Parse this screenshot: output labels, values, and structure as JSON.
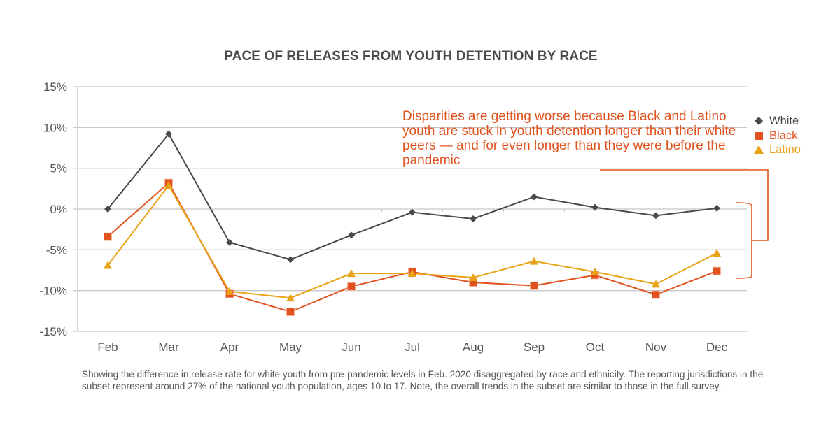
{
  "chart_data": {
    "type": "line",
    "title": "PACE OF RELEASES FROM YOUTH DETENTION BY RACE",
    "xlabel": "",
    "ylabel": "",
    "categories": [
      "Feb",
      "Mar",
      "Apr",
      "May",
      "Jun",
      "Jul",
      "Aug",
      "Sep",
      "Oct",
      "Nov",
      "Dec"
    ],
    "ylim": [
      -15,
      15
    ],
    "yticks": [
      15,
      10,
      5,
      0,
      -5,
      -10,
      -15
    ],
    "ytick_labels": [
      "15%",
      "10%",
      "5%",
      "0%",
      "-5%",
      "-10%",
      "-15%"
    ],
    "grid": true,
    "legend_position": "top-right",
    "series": [
      {
        "name": "White",
        "color": "#4a4a4a",
        "marker": "diamond",
        "values": [
          0.0,
          9.2,
          -4.1,
          -6.2,
          -3.2,
          -0.4,
          -1.2,
          1.5,
          0.2,
          -0.8,
          0.1
        ]
      },
      {
        "name": "Black",
        "color": "#e0531f",
        "marker": "square",
        "values": [
          -3.4,
          3.2,
          -10.4,
          -12.6,
          -9.5,
          -7.7,
          -9.0,
          -9.4,
          -8.1,
          -10.5,
          -7.6
        ]
      },
      {
        "name": "Latino",
        "color": "#e8a317",
        "marker": "triangle",
        "values": [
          -6.9,
          2.9,
          -10.1,
          -10.9,
          -7.9,
          -7.9,
          -8.4,
          -6.4,
          -7.7,
          -9.2,
          -5.4
        ]
      }
    ],
    "annotation": "Disparities are getting worse because Black and Latino youth are stuck in youth detention longer than their white peers — and for even longer than they were before the pandemic",
    "caption": "Showing the difference in release rate for white youth from pre-pandemic levels in Feb. 2020 disaggregated by race and ethnicity. The reporting jurisdictions in the subset represent around 27% of the national youth population, ages 10 to 17. Note, the overall trends in the subset are similar to those in the full survey."
  },
  "colors": {
    "annotation": "#e0531f",
    "grid": "#c8c8c8",
    "title": "#4a4a4a",
    "text": "#555555"
  }
}
